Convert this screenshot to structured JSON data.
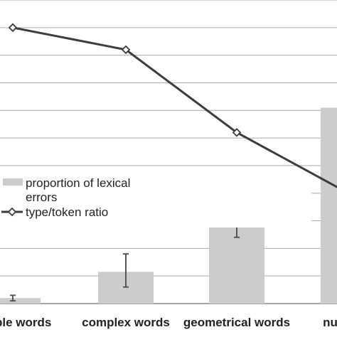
{
  "chart_data": {
    "type": "bar",
    "categories": [
      "simple words",
      "complex words",
      "geometrical words",
      "numbers"
    ],
    "series": [
      {
        "name": "proportion of lexical errors",
        "kind": "bar",
        "values": [
          0.2,
          1.15,
          3.2,
          7.1
        ],
        "error_low": [
          0.1,
          0.6,
          2.4,
          null
        ],
        "error_high": [
          0.3,
          1.8,
          3.85,
          null
        ]
      },
      {
        "name": "type/token ratio",
        "kind": "line",
        "marker": "diamond",
        "values": [
          10.0,
          9.2,
          6.2,
          4.0
        ]
      }
    ],
    "ylim": [
      0,
      11
    ],
    "grid": true,
    "legend_position": "center-left",
    "colors": {
      "bar": "#cccccc",
      "line": "#3c3c3c",
      "grid": "#aaaaaa",
      "error_bar": "#555555",
      "marker_fill": "#ffffff"
    }
  }
}
